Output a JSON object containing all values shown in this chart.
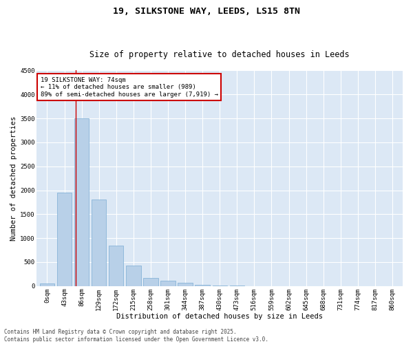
{
  "title_line1": "19, SILKSTONE WAY, LEEDS, LS15 8TN",
  "title_line2": "Size of property relative to detached houses in Leeds",
  "xlabel": "Distribution of detached houses by size in Leeds",
  "ylabel": "Number of detached properties",
  "annotation_line1": "19 SILKSTONE WAY: 74sqm",
  "annotation_line2": "← 11% of detached houses are smaller (989)",
  "annotation_line3": "89% of semi-detached houses are larger (7,919) →",
  "bar_color": "#b8d0e8",
  "bar_edge_color": "#7aacd4",
  "vline_color": "#cc0000",
  "annotation_box_edgecolor": "#cc0000",
  "background_color": "#dce8f5",
  "grid_color": "#ffffff",
  "categories": [
    "0sqm",
    "43sqm",
    "86sqm",
    "129sqm",
    "172sqm",
    "215sqm",
    "258sqm",
    "301sqm",
    "344sqm",
    "387sqm",
    "430sqm",
    "473sqm",
    "516sqm",
    "559sqm",
    "602sqm",
    "645sqm",
    "688sqm",
    "731sqm",
    "774sqm",
    "817sqm",
    "860sqm"
  ],
  "values": [
    50,
    1950,
    3500,
    1800,
    850,
    430,
    175,
    105,
    65,
    30,
    10,
    5,
    2,
    1,
    0,
    0,
    0,
    0,
    0,
    0,
    0
  ],
  "vline_x_bar_index": 1.65,
  "ylim": [
    0,
    4500
  ],
  "yticks": [
    0,
    500,
    1000,
    1500,
    2000,
    2500,
    3000,
    3500,
    4000,
    4500
  ],
  "footer_line1": "Contains HM Land Registry data © Crown copyright and database right 2025.",
  "footer_line2": "Contains public sector information licensed under the Open Government Licence v3.0.",
  "annotation_fontsize": 6.5,
  "title_fontsize1": 9.5,
  "title_fontsize2": 8.5,
  "axis_label_fontsize": 7.5,
  "tick_fontsize": 6.5,
  "footer_fontsize": 5.5
}
